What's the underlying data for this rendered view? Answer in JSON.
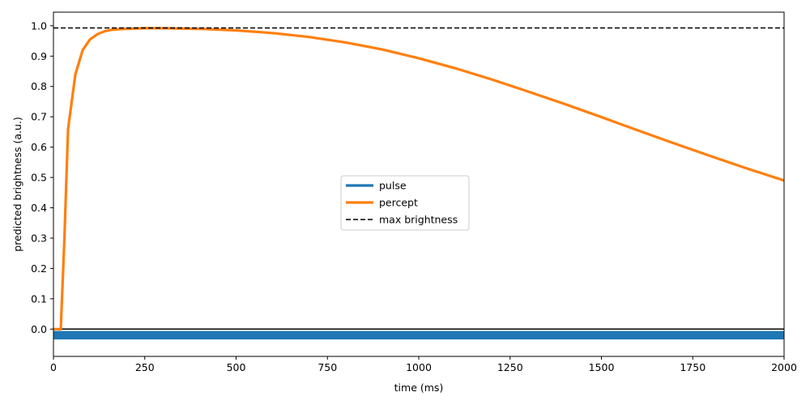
{
  "chart_data": {
    "type": "line",
    "xlabel": "time (ms)",
    "ylabel": "predicted brightness (a.u.)",
    "xlim": [
      0,
      2000
    ],
    "ylim": [
      -0.09,
      1.045
    ],
    "xticks": [
      0,
      250,
      500,
      750,
      1000,
      1250,
      1500,
      1750,
      2000
    ],
    "yticks": [
      0.0,
      0.1,
      0.2,
      0.3,
      0.4,
      0.5,
      0.6,
      0.7,
      0.8,
      0.9,
      1.0
    ],
    "xtick_labels": [
      "0",
      "250",
      "500",
      "750",
      "1000",
      "1250",
      "1500",
      "1750",
      "2000"
    ],
    "ytick_labels": [
      "0.0",
      "0.1",
      "0.2",
      "0.3",
      "0.4",
      "0.5",
      "0.6",
      "0.7",
      "0.8",
      "0.9",
      "1.0"
    ],
    "grid": false,
    "legend_position": "center",
    "series": [
      {
        "name": "pulse",
        "color": "#1f77b4",
        "style": "solid",
        "band": [
          -0.034,
          -0.006
        ],
        "x": [
          0,
          2000
        ],
        "y": [
          -0.02,
          -0.02
        ]
      },
      {
        "name": "percept",
        "color": "#ff7f0e",
        "style": "solid",
        "x": [
          0,
          20,
          30,
          40,
          60,
          80,
          100,
          120,
          140,
          160,
          180,
          200,
          250,
          300,
          400,
          500,
          600,
          700,
          800,
          900,
          1000,
          1100,
          1200,
          1300,
          1400,
          1500,
          1600,
          1700,
          1800,
          1900,
          2000
        ],
        "y": [
          0.0,
          0.0,
          0.3,
          0.66,
          0.84,
          0.92,
          0.955,
          0.972,
          0.982,
          0.987,
          0.989,
          0.99,
          0.992,
          0.992,
          0.99,
          0.985,
          0.976,
          0.963,
          0.945,
          0.922,
          0.893,
          0.86,
          0.823,
          0.783,
          0.742,
          0.699,
          0.655,
          0.612,
          0.57,
          0.529,
          0.49
        ]
      },
      {
        "name": "max brightness",
        "color": "#000000",
        "style": "dashed",
        "x": [
          0,
          2000
        ],
        "y": [
          0.993,
          0.993
        ]
      }
    ],
    "reference_lines": [
      {
        "axis": "y",
        "value": 0.0,
        "color": "#000000"
      }
    ]
  }
}
